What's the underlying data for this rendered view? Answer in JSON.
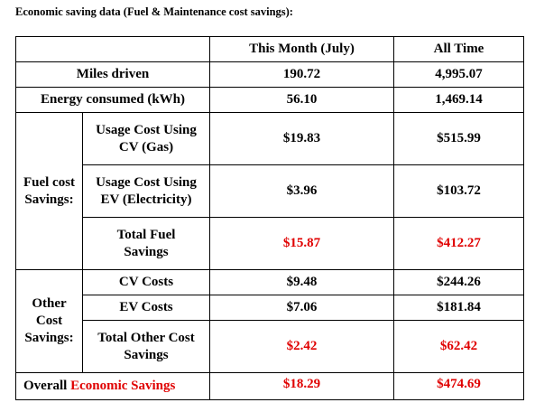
{
  "title": "Economic saving data (Fuel & Maintenance cost savings):",
  "table": {
    "columns": [
      "This Month (July)",
      "All Time"
    ],
    "miles": {
      "label": "Miles driven",
      "values": [
        "190.72",
        "4,995.07"
      ]
    },
    "energy": {
      "label": "Energy consumed (kWh)",
      "values": [
        "56.10",
        "1,469.14"
      ]
    },
    "fuel": {
      "group": "Fuel cost Savings:",
      "rows": [
        {
          "label": "Usage Cost Using CV (Gas)",
          "values": [
            "$19.83",
            "$515.99"
          ]
        },
        {
          "label": "Usage Cost Using EV (Electricity)",
          "values": [
            "$3.96",
            "$103.72"
          ]
        },
        {
          "label": "Total Fuel Savings",
          "values": [
            "$15.87",
            "$412.27"
          ]
        }
      ]
    },
    "other": {
      "group": "Other Cost Savings:",
      "rows": [
        {
          "label": "CV Costs",
          "values": [
            "$9.48",
            "$244.26"
          ]
        },
        {
          "label": "EV Costs",
          "values": [
            "$7.06",
            "$181.84"
          ]
        },
        {
          "label": "Total Other Cost Savings",
          "values": [
            "$2.42",
            "$62.42"
          ]
        }
      ]
    },
    "overall": {
      "label": [
        "Overall",
        "Economic Savings"
      ],
      "values": [
        "$18.29",
        "$474.69"
      ]
    }
  }
}
